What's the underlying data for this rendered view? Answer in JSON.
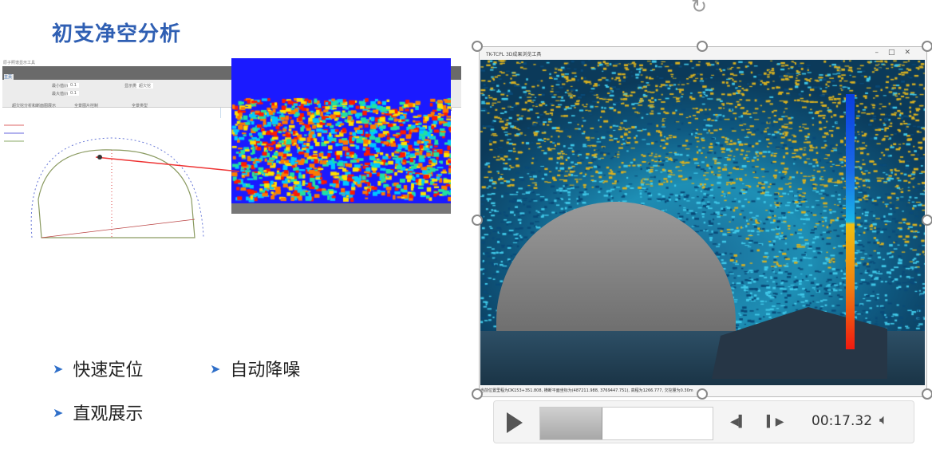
{
  "slide": {
    "title": "初支净空分析",
    "bullets": [
      {
        "label": "快速定位"
      },
      {
        "label": "自动降噪"
      },
      {
        "label": "直观展示"
      }
    ],
    "bullet_icon": "arrow-right-icon"
  },
  "screenshot": {
    "window_caption": "原子照谱显示工具",
    "tab": "主页",
    "ribbon_groups": [
      "超欠挖分析和断面图展示",
      "全景图片控制",
      "全景类型"
    ],
    "display_type_label": "显示类型",
    "display_type_value": "超欠挖",
    "field1_label": "最小值(m)",
    "field1_value": "0.1",
    "field2_label": "最大值(m)",
    "field2_value": "0.1",
    "ruler_ticks": [
      "753322",
      "753340",
      "753352",
      "753363",
      "753"
    ]
  },
  "video_window": {
    "title": "TK-TCPL 3D成果浏览工具",
    "controls": [
      "–",
      "□",
      "✕"
    ],
    "status_text": "当前位置里程为DK153+351.808, 横断平面坐标为(487211.988, 3769447.751), 高程为1266.777, 欠挖量为0.30m"
  },
  "player": {
    "time": "00:17.32",
    "progress_percent": 36,
    "play_icon": "play-icon",
    "volume_icon": "volume-icon"
  },
  "colors": {
    "title": "#2f5fb3",
    "bullet_arrow": "#2f6fc9"
  }
}
